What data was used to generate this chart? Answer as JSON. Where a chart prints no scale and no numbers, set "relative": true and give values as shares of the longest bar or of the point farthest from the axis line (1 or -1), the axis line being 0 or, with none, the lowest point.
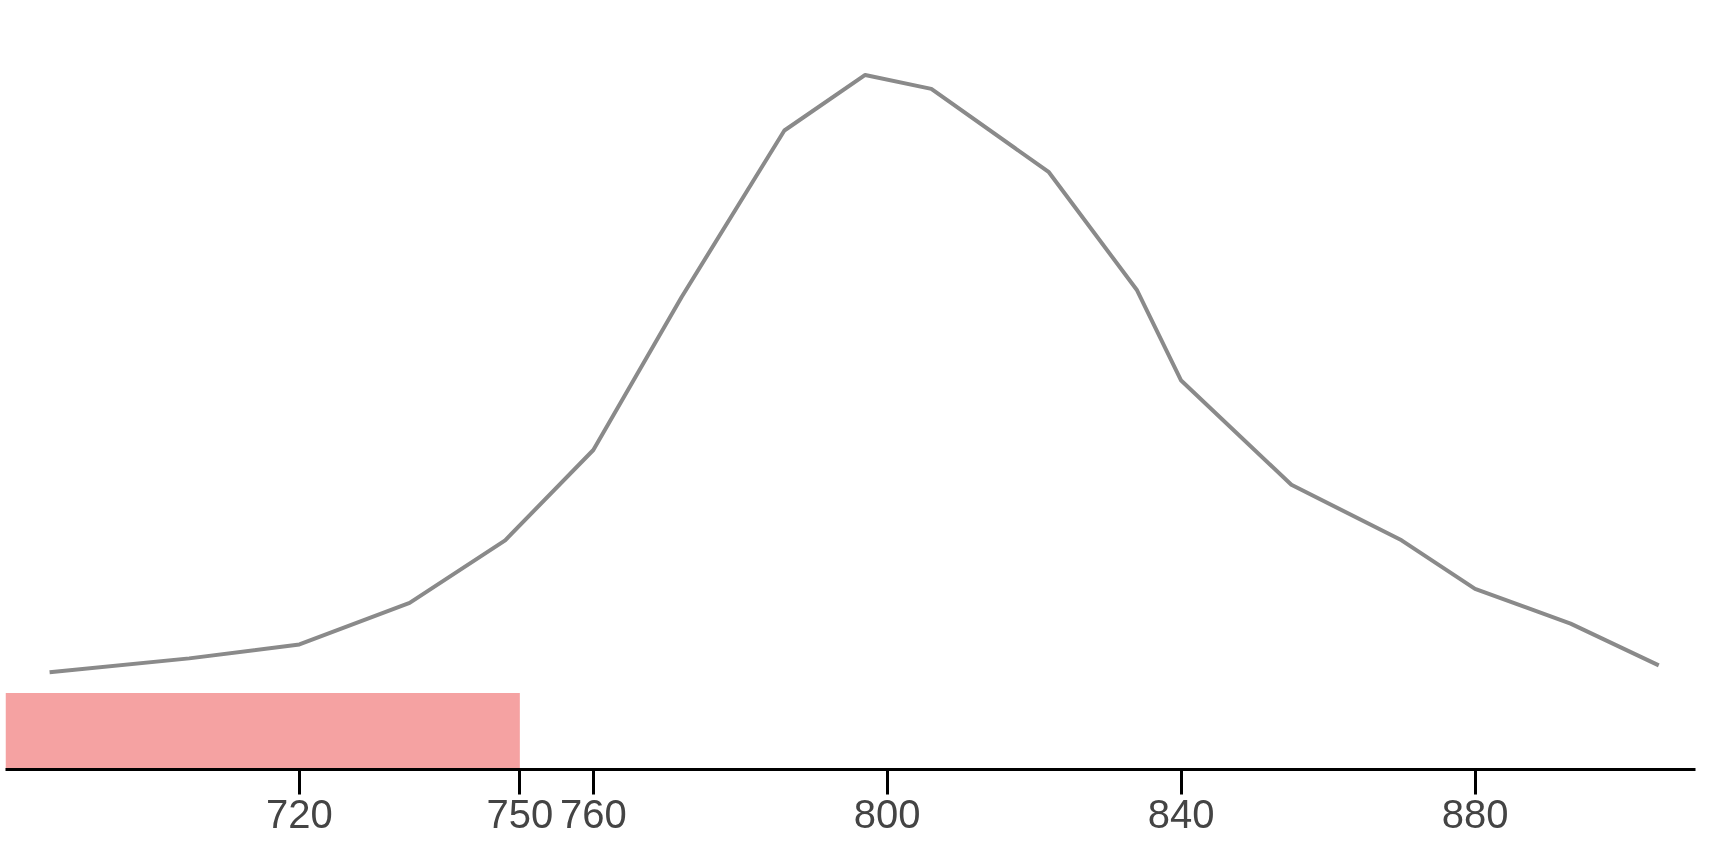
{
  "chart_data": {
    "type": "line",
    "relative": true,
    "x": [
      686,
      705,
      720,
      735,
      748,
      760,
      772,
      786,
      797,
      806,
      822,
      834,
      840,
      855,
      870,
      880,
      893,
      905
    ],
    "series": [
      {
        "color": "#8a8a8a",
        "values": [
          0.14,
          0.16,
          0.18,
          0.24,
          0.33,
          0.46,
          0.68,
          0.92,
          1.0,
          0.98,
          0.86,
          0.69,
          0.56,
          0.41,
          0.33,
          0.26,
          0.21,
          0.15
        ]
      }
    ],
    "xlim": [
      680,
      910
    ],
    "xticks": [
      720,
      750,
      760,
      800,
      840,
      880
    ],
    "bands": [
      {
        "axis": "x",
        "from": 680,
        "to": 750,
        "color": "#f28b8b"
      }
    ],
    "grid": false
  }
}
